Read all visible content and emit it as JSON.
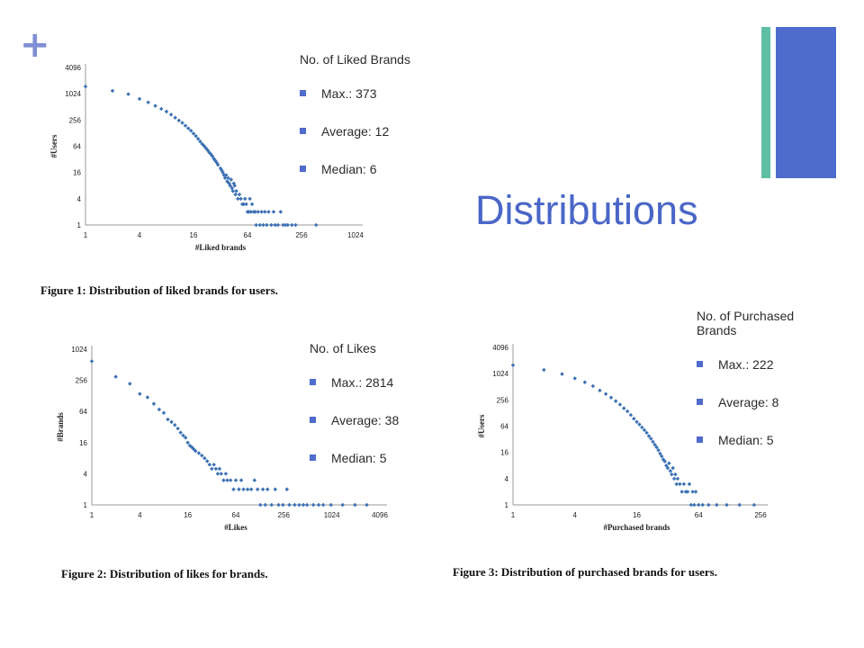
{
  "slide": {
    "title": "Distributions",
    "plus_icon": "+",
    "accent_colors": {
      "blue": "#4f6bcc",
      "green": "#5dbfa3",
      "title": "#4a66c7",
      "points": "#3d72b4"
    }
  },
  "stats": {
    "liked_brands": {
      "heading": "No. of Liked Brands",
      "items": [
        "Max.: 373",
        "Average: 12",
        "Median: 6"
      ]
    },
    "likes": {
      "heading": "No. of Likes",
      "items": [
        "Max.: 2814",
        "Average: 38",
        "Median: 5"
      ]
    },
    "purchased_brands": {
      "heading": "No. of Purchased Brands",
      "items": [
        "Max.: 222",
        "Average: 8",
        "Median: 5"
      ]
    }
  },
  "captions": {
    "fig1": "Figure 1:  Distribution of liked brands for users.",
    "fig2": "Figure 2:  Distribution of likes for brands.",
    "fig3": "Figure 3:  Distribution of purchased brands for users."
  },
  "chart_data": [
    {
      "type": "scatter",
      "xlabel": "#Liked brands",
      "ylabel": "#Users",
      "x_scale": "log2",
      "y_scale": "log2",
      "xticks": [
        1,
        4,
        16,
        64,
        256,
        1024
      ],
      "yticks": [
        1,
        4,
        16,
        64,
        256,
        1024,
        4096
      ],
      "xlim": [
        1,
        1024
      ],
      "ylim": [
        1,
        4096
      ],
      "grid": false,
      "legend": "none",
      "series": [
        {
          "points": [
            [
              1,
              1500
            ],
            [
              2,
              1200
            ],
            [
              3,
              1000
            ],
            [
              4,
              780
            ],
            [
              5,
              650
            ],
            [
              6,
              540
            ],
            [
              7,
              460
            ],
            [
              8,
              400
            ],
            [
              9,
              340
            ],
            [
              10,
              290
            ],
            [
              11,
              250
            ],
            [
              12,
              220
            ],
            [
              13,
              190
            ],
            [
              14,
              165
            ],
            [
              15,
              145
            ],
            [
              16,
              125
            ],
            [
              17,
              110
            ],
            [
              18,
              95
            ],
            [
              19,
              82
            ],
            [
              20,
              72
            ],
            [
              21,
              65
            ],
            [
              22,
              58
            ],
            [
              23,
              52
            ],
            [
              24,
              46
            ],
            [
              25,
              42
            ],
            [
              26,
              38
            ],
            [
              27,
              33
            ],
            [
              28,
              30
            ],
            [
              29,
              27
            ],
            [
              30,
              24
            ],
            [
              32,
              20
            ],
            [
              33,
              18
            ],
            [
              34,
              16
            ],
            [
              35,
              14
            ],
            [
              36,
              12
            ],
            [
              37,
              14
            ],
            [
              38,
              10
            ],
            [
              39,
              12
            ],
            [
              40,
              9
            ],
            [
              41,
              8
            ],
            [
              42,
              11
            ],
            [
              43,
              7
            ],
            [
              44,
              6
            ],
            [
              45,
              9
            ],
            [
              46,
              8
            ],
            [
              47,
              5
            ],
            [
              48,
              6
            ],
            [
              50,
              4
            ],
            [
              52,
              5
            ],
            [
              54,
              4
            ],
            [
              56,
              3
            ],
            [
              58,
              3
            ],
            [
              60,
              4
            ],
            [
              62,
              3
            ],
            [
              64,
              2
            ],
            [
              66,
              2
            ],
            [
              68,
              4
            ],
            [
              70,
              2
            ],
            [
              72,
              3
            ],
            [
              75,
              2
            ],
            [
              78,
              2
            ],
            [
              80,
              1
            ],
            [
              84,
              2
            ],
            [
              88,
              1
            ],
            [
              92,
              2
            ],
            [
              96,
              1
            ],
            [
              100,
              2
            ],
            [
              105,
              1
            ],
            [
              110,
              2
            ],
            [
              118,
              1
            ],
            [
              125,
              2
            ],
            [
              130,
              1
            ],
            [
              140,
              1
            ],
            [
              150,
              2
            ],
            [
              160,
              1
            ],
            [
              170,
              1
            ],
            [
              180,
              1
            ],
            [
              200,
              1
            ],
            [
              220,
              1
            ],
            [
              373,
              1
            ]
          ]
        }
      ]
    },
    {
      "type": "scatter",
      "xlabel": "#Likes",
      "ylabel": "#Brands",
      "x_scale": "log2",
      "y_scale": "log2",
      "xticks": [
        1,
        4,
        16,
        64,
        256,
        1024,
        4096
      ],
      "yticks": [
        1,
        4,
        16,
        64,
        256,
        1024
      ],
      "xlim": [
        1,
        4096
      ],
      "ylim": [
        1,
        1024
      ],
      "grid": false,
      "legend": "none",
      "series": [
        {
          "points": [
            [
              1,
              600
            ],
            [
              2,
              300
            ],
            [
              3,
              220
            ],
            [
              4,
              140
            ],
            [
              5,
              120
            ],
            [
              6,
              90
            ],
            [
              7,
              70
            ],
            [
              8,
              60
            ],
            [
              9,
              45
            ],
            [
              10,
              40
            ],
            [
              11,
              35
            ],
            [
              12,
              30
            ],
            [
              13,
              25
            ],
            [
              14,
              22
            ],
            [
              15,
              20
            ],
            [
              16,
              16
            ],
            [
              17,
              14
            ],
            [
              18,
              13
            ],
            [
              19,
              12
            ],
            [
              20,
              11
            ],
            [
              22,
              10
            ],
            [
              24,
              9
            ],
            [
              26,
              8
            ],
            [
              28,
              7
            ],
            [
              30,
              6
            ],
            [
              32,
              5
            ],
            [
              34,
              6
            ],
            [
              36,
              5
            ],
            [
              38,
              4
            ],
            [
              40,
              5
            ],
            [
              42,
              4
            ],
            [
              45,
              3
            ],
            [
              48,
              4
            ],
            [
              50,
              3
            ],
            [
              55,
              3
            ],
            [
              60,
              2
            ],
            [
              64,
              3
            ],
            [
              70,
              2
            ],
            [
              75,
              3
            ],
            [
              80,
              2
            ],
            [
              90,
              2
            ],
            [
              100,
              2
            ],
            [
              110,
              3
            ],
            [
              120,
              2
            ],
            [
              130,
              1
            ],
            [
              140,
              2
            ],
            [
              150,
              1
            ],
            [
              160,
              2
            ],
            [
              180,
              1
            ],
            [
              200,
              2
            ],
            [
              220,
              1
            ],
            [
              250,
              1
            ],
            [
              280,
              2
            ],
            [
              300,
              1
            ],
            [
              350,
              1
            ],
            [
              400,
              1
            ],
            [
              450,
              1
            ],
            [
              500,
              1
            ],
            [
              600,
              1
            ],
            [
              700,
              1
            ],
            [
              800,
              1
            ],
            [
              1000,
              1
            ],
            [
              1400,
              1
            ],
            [
              2000,
              1
            ],
            [
              2814,
              1
            ]
          ]
        }
      ]
    },
    {
      "type": "scatter",
      "xlabel": "#Purchased brands",
      "ylabel": "#Users",
      "x_scale": "log2",
      "y_scale": "log2",
      "xticks": [
        1,
        4,
        16,
        64,
        256
      ],
      "yticks": [
        1,
        4,
        16,
        64,
        256,
        1024,
        4096
      ],
      "xlim": [
        1,
        256
      ],
      "ylim": [
        1,
        4096
      ],
      "grid": false,
      "legend": "none",
      "series": [
        {
          "points": [
            [
              1,
              1600
            ],
            [
              2,
              1250
            ],
            [
              3,
              1000
            ],
            [
              4,
              800
            ],
            [
              5,
              650
            ],
            [
              6,
              530
            ],
            [
              7,
              420
            ],
            [
              8,
              350
            ],
            [
              9,
              290
            ],
            [
              10,
              240
            ],
            [
              11,
              200
            ],
            [
              12,
              165
            ],
            [
              13,
              140
            ],
            [
              14,
              115
            ],
            [
              15,
              95
            ],
            [
              16,
              80
            ],
            [
              17,
              70
            ],
            [
              18,
              60
            ],
            [
              19,
              52
            ],
            [
              20,
              45
            ],
            [
              21,
              38
            ],
            [
              22,
              33
            ],
            [
              23,
              28
            ],
            [
              24,
              24
            ],
            [
              25,
              21
            ],
            [
              26,
              18
            ],
            [
              27,
              15
            ],
            [
              28,
              13
            ],
            [
              29,
              11
            ],
            [
              30,
              10
            ],
            [
              31,
              8
            ],
            [
              32,
              7
            ],
            [
              33,
              9
            ],
            [
              34,
              6
            ],
            [
              35,
              5
            ],
            [
              36,
              7
            ],
            [
              37,
              4
            ],
            [
              38,
              5
            ],
            [
              39,
              3
            ],
            [
              40,
              4
            ],
            [
              42,
              3
            ],
            [
              44,
              2
            ],
            [
              46,
              3
            ],
            [
              48,
              2
            ],
            [
              50,
              2
            ],
            [
              52,
              3
            ],
            [
              54,
              1
            ],
            [
              56,
              2
            ],
            [
              58,
              1
            ],
            [
              60,
              2
            ],
            [
              64,
              1
            ],
            [
              70,
              1
            ],
            [
              80,
              1
            ],
            [
              96,
              1
            ],
            [
              120,
              1
            ],
            [
              160,
              1
            ],
            [
              222,
              1
            ]
          ]
        }
      ]
    }
  ]
}
